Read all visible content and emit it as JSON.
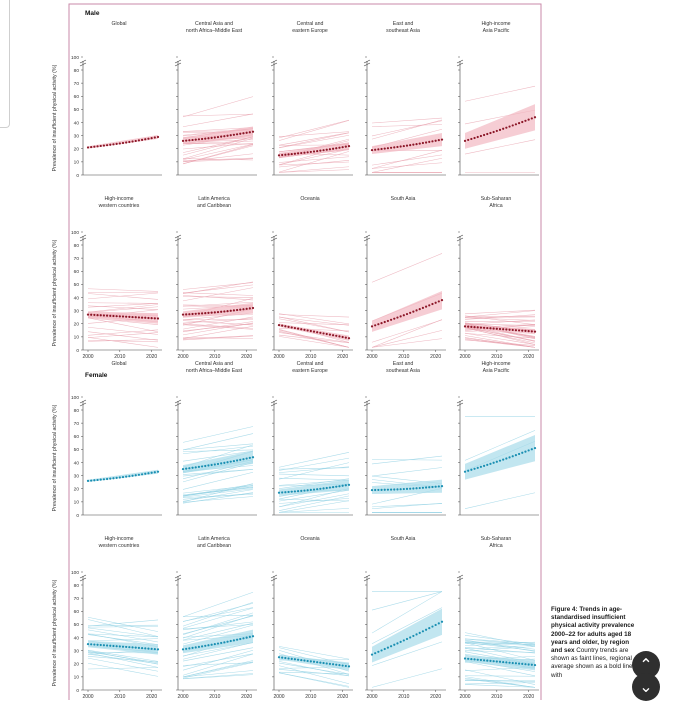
{
  "chart_data": {
    "type": "line",
    "x_ticks": [
      2000,
      2010,
      2020
    ],
    "xlim": [
      2000,
      2022
    ],
    "y_ticks": [
      0,
      10,
      20,
      30,
      40,
      50,
      60,
      70,
      80,
      100
    ],
    "y_break": "axis break between 80 and 100",
    "ylabel": "Prevalence of insufficient physical activity (%)",
    "colors": {
      "male_mean": "#8c1728",
      "male_band": "#f2b8c2",
      "male_line": "#e8a0ad",
      "female_mean": "#1a8fb2",
      "female_band": "#a8dcea",
      "female_line": "#8fd0e3",
      "frame": "#c98aa8",
      "axis": "#444444"
    },
    "sections": [
      {
        "title": "Male",
        "rows": [
          [
            {
              "title": [
                "Global"
              ],
              "start": 21,
              "end": 29,
              "band": 1.5,
              "country_lines": 0
            },
            {
              "title": [
                "Central Asia and",
                "north Africa–Middle East"
              ],
              "start": 26,
              "end": 33,
              "band": 4,
              "country_lines": 28
            },
            {
              "title": [
                "Central and",
                "eastern Europe"
              ],
              "start": 15,
              "end": 22,
              "band": 3,
              "country_lines": 22
            },
            {
              "title": [
                "East and",
                "southeast Asia"
              ],
              "start": 19,
              "end": 27,
              "band": 5,
              "country_lines": 14
            },
            {
              "title": [
                "High-income",
                "Asia Pacific"
              ],
              "start": 26,
              "end": 44,
              "band": 10,
              "country_lines": 4
            }
          ],
          [
            {
              "title": [
                "High-income",
                "western countries"
              ],
              "start": 27,
              "end": 24,
              "band": 4,
              "country_lines": 24
            },
            {
              "title": [
                "Latin America",
                "and Caribbean"
              ],
              "start": 27,
              "end": 32,
              "band": 4,
              "country_lines": 30
            },
            {
              "title": [
                "Oceania"
              ],
              "start": 19,
              "end": 9,
              "band": 2,
              "country_lines": 14
            },
            {
              "title": [
                "South Asia"
              ],
              "start": 18,
              "end": 38,
              "band": 7,
              "country_lines": 6
            },
            {
              "title": [
                "Sub-Saharan",
                "Africa"
              ],
              "start": 18,
              "end": 14,
              "band": 2,
              "country_lines": 36
            }
          ]
        ]
      },
      {
        "title": "Female",
        "rows": [
          [
            {
              "title": [
                "Global"
              ],
              "start": 26,
              "end": 33,
              "band": 1.5,
              "country_lines": 0
            },
            {
              "title": [
                "Central Asia and",
                "north Africa–Middle East"
              ],
              "start": 35,
              "end": 44,
              "band": 5,
              "country_lines": 30
            },
            {
              "title": [
                "Central and",
                "eastern Europe"
              ],
              "start": 17,
              "end": 23,
              "band": 4,
              "country_lines": 22
            },
            {
              "title": [
                "East and",
                "southeast Asia"
              ],
              "start": 19,
              "end": 22,
              "band": 5,
              "country_lines": 14
            },
            {
              "title": [
                "High-income",
                "Asia Pacific"
              ],
              "start": 33,
              "end": 51,
              "band": 10,
              "country_lines": 4
            }
          ],
          [
            {
              "title": [
                "High-income",
                "western countries"
              ],
              "start": 35,
              "end": 31,
              "band": 4,
              "country_lines": 24
            },
            {
              "title": [
                "Latin America",
                "and Caribbean"
              ],
              "start": 31,
              "end": 41,
              "band": 5,
              "country_lines": 30
            },
            {
              "title": [
                "Oceania"
              ],
              "start": 25,
              "end": 18,
              "band": 3,
              "country_lines": 14
            },
            {
              "title": [
                "South Asia"
              ],
              "start": 27,
              "end": 52,
              "band": 10,
              "country_lines": 6
            },
            {
              "title": [
                "Sub-Saharan",
                "Africa"
              ],
              "start": 24,
              "end": 19,
              "band": 4,
              "country_lines": 36
            }
          ]
        ]
      }
    ]
  },
  "caption": {
    "title": "Figure 4: Trends in age-standardised insufficient physical activity prevalence 2000–22 for adults aged 18 years and older, by region and sex",
    "body": "Country trends are shown as faint lines, regional average shown as a bold line with"
  },
  "nav": {
    "up_label": "⌃",
    "down_label": "⌄"
  }
}
